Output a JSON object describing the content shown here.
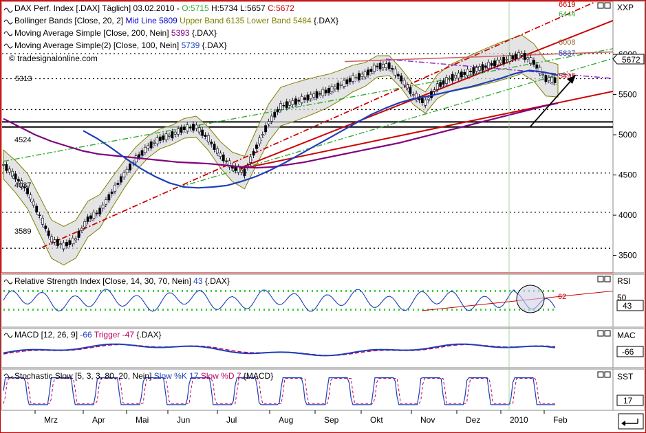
{
  "colors": {
    "accent": "#0000cc",
    "border": "#c00000",
    "ma200": "#800080",
    "ma100": "#1c3fb8",
    "band": "#808000",
    "candle": "#000000",
    "rsi": "#1c3fb8",
    "macd": "#1c3fb8",
    "trigger": "#c00060",
    "dots": "#33cc33"
  },
  "main_panel": {
    "header": [
      {
        "prefix": "DAX Perf. Index [.DAX]  Täglich] 03.02.2010 - ",
        "o": "O:5715",
        "h": "H:5734",
        "l": "L:5657",
        "c": "C:5672"
      },
      {
        "prefix": "Bollinger Bands [Close, 20, 2] ",
        "mid": "Mid Line 5809",
        "upper": "Upper Band 6135",
        "lower": "Lower Band 5484",
        "suffix": " {.DAX}"
      },
      {
        "prefix": "Moving Average Simple [Close, 200, Nein] ",
        "val": "5393",
        "suffix": " {.DAX}"
      },
      {
        "prefix": "Moving Average Simple(2) [Close, 100, Nein] ",
        "val": "5739",
        "suffix": " {.DAX}"
      }
    ],
    "watermark": "© tradesignalonline.com",
    "axis_symbol": "XXP",
    "last_price": "5672",
    "annotations": [
      "5313",
      "4524",
      "4037",
      "3589",
      "6619",
      "6444",
      "6008",
      "5837",
      "5495",
      "5697"
    ]
  },
  "rsi_panel": {
    "header_prefix": "Relative Strength Index [Close, 14, 30, 70, Nein] ",
    "val": "43",
    "suffix": " {.DAX}",
    "axis_symbol": "RSI",
    "last": "43",
    "tick": "50",
    "annotation": "62"
  },
  "macd_panel": {
    "header_prefix": "MACD [12, 26, 9] ",
    "val": "-66",
    "trigger": "Trigger -47",
    "suffix": " {.DAX}",
    "axis_symbol": "MAC",
    "last": "-66"
  },
  "stoch_panel": {
    "header_prefix": "Stochastic Slow [5, 3, 3, 80, 20, Nein] ",
    "k": "Slow %K 17",
    "d": "Slow %D 7",
    "suffix": " {MACD}",
    "axis_symbol": "SST",
    "last": "17"
  },
  "chart_data": {
    "type": "line",
    "title": "DAX Perf. Index [.DAX] Täglich",
    "ylim": [
      3300,
      6650
    ],
    "y_ticks": [
      3500,
      4000,
      4500,
      5000,
      5500,
      6000
    ],
    "x_ticks": [
      "Mrz",
      "Apr",
      "Mai",
      "Jun",
      "Jul",
      "Aug",
      "Sep",
      "Okt",
      "Nov",
      "Dez",
      "2010",
      "Feb"
    ],
    "series": [
      {
        "name": "DAX Close",
        "values": [
          4630,
          4480,
          4300,
          4000,
          3700,
          3620,
          3700,
          3950,
          4050,
          4280,
          4500,
          4700,
          4850,
          4950,
          5000,
          5080,
          5100,
          4950,
          4750,
          4600,
          4530,
          4850,
          5150,
          5350,
          5400,
          5450,
          5500,
          5550,
          5620,
          5700,
          5750,
          5850,
          5860,
          5700,
          5500,
          5400,
          5600,
          5700,
          5750,
          5800,
          5850,
          5900,
          5950,
          6000,
          5900,
          5700,
          5672
        ]
      },
      {
        "name": "Moving Average Simple [Close, 200, Nein]",
        "values": [
          5200,
          5100,
          5000,
          4920,
          4860,
          4800,
          4760,
          4740,
          4720,
          4700,
          4680,
          4660,
          4650,
          4640,
          4620,
          4600,
          4590,
          4600,
          4630,
          4660,
          4700,
          4740,
          4780,
          4820,
          4860,
          4900,
          4950,
          5000,
          5050,
          5100,
          5150,
          5200,
          5250,
          5300,
          5350,
          5393
        ]
      },
      {
        "name": "Moving Average Simple(2) [Close, 100, Nein]",
        "values": [
          5050,
          4950,
          4830,
          4700,
          4580,
          4480,
          4400,
          4350,
          4340,
          4350,
          4370,
          4420,
          4480,
          4560,
          4650,
          4750,
          4850,
          4950,
          5050,
          5150,
          5250,
          5330,
          5400,
          5450,
          5480,
          5520,
          5560,
          5600,
          5650,
          5700,
          5760,
          5800,
          5780,
          5739
        ]
      }
    ],
    "levels": [
      3589,
      4037,
      4524,
      5097,
      5160,
      5313,
      5697,
      6008
    ],
    "rsi": {
      "name": "Relative Strength Index",
      "last": 43,
      "bounds": [
        30,
        70
      ]
    },
    "macd": {
      "name": "MACD",
      "last": -66,
      "trigger": -47
    },
    "stochastic": {
      "k": 17,
      "d": 7
    }
  }
}
